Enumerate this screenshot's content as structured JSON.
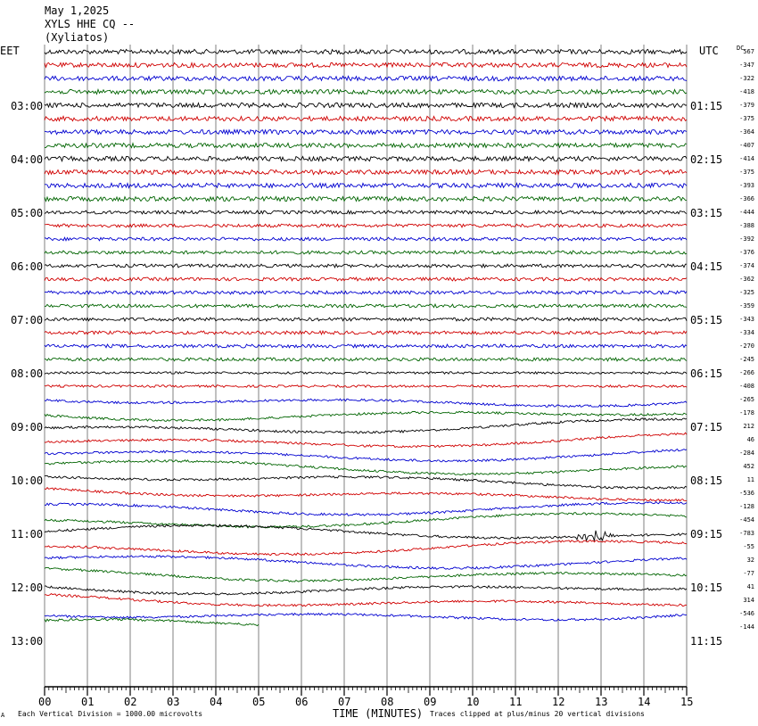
{
  "header": {
    "date": "May 1,2025",
    "station": "XYLS HHE CQ --",
    "location": "(Xyliatos)"
  },
  "axis": {
    "left_zone": "EET",
    "right_zone": "UTC",
    "dc_label": "DC",
    "x_label": "TIME (MINUTES)",
    "x_ticks": [
      "00",
      "01",
      "02",
      "03",
      "04",
      "05",
      "06",
      "07",
      "08",
      "09",
      "10",
      "11",
      "12",
      "13",
      "14",
      "15"
    ],
    "left_hours": [
      "03:00",
      "04:00",
      "05:00",
      "06:00",
      "07:00",
      "08:00",
      "09:00",
      "10:00",
      "11:00",
      "12:00",
      "13:00"
    ],
    "right_hours": [
      "01:15",
      "02:15",
      "03:15",
      "04:15",
      "05:15",
      "06:15",
      "07:15",
      "08:15",
      "09:15",
      "10:15",
      "11:15"
    ]
  },
  "footer": {
    "scale_note": "Each Vertical Division = 1000.00 microvolts",
    "clip_note": "Traces clipped at plus/minus 20 vertical divisions",
    "logo": "A"
  },
  "colors": {
    "trace_cycle": [
      "#000000",
      "#d00000",
      "#0000d0",
      "#006400"
    ],
    "grid": "#808080"
  },
  "chart_data": {
    "type": "line",
    "title": "XYLS HHE CQ --",
    "xlabel": "TIME (MINUTES)",
    "ylabel": "",
    "x_range_minutes": [
      0,
      15
    ],
    "line_interval_minutes": 15,
    "grid": "vertical lines every minute",
    "dc_offsets": [
      "567",
      "-347",
      "-322",
      "-418",
      "-379",
      "-375",
      "-364",
      "-407",
      "-414",
      "-375",
      "-393",
      "-366",
      "-444",
      "-388",
      "-392",
      "-376",
      "-374",
      "-362",
      "-325",
      "-359",
      "-343",
      "-334",
      "-270",
      "-245",
      "-266",
      "-408",
      "-265",
      "-178",
      "212",
      "46",
      "-284",
      "452",
      "11",
      "-536",
      "-128",
      "-454",
      "-783",
      "-55",
      "32",
      "-77",
      "41",
      "314",
      "-546",
      "-144"
    ],
    "trace_count": 44,
    "last_trace_end_minute": 5.0,
    "annotations": [
      "event near minute 12.5-13 on 11:00 EET line"
    ]
  }
}
